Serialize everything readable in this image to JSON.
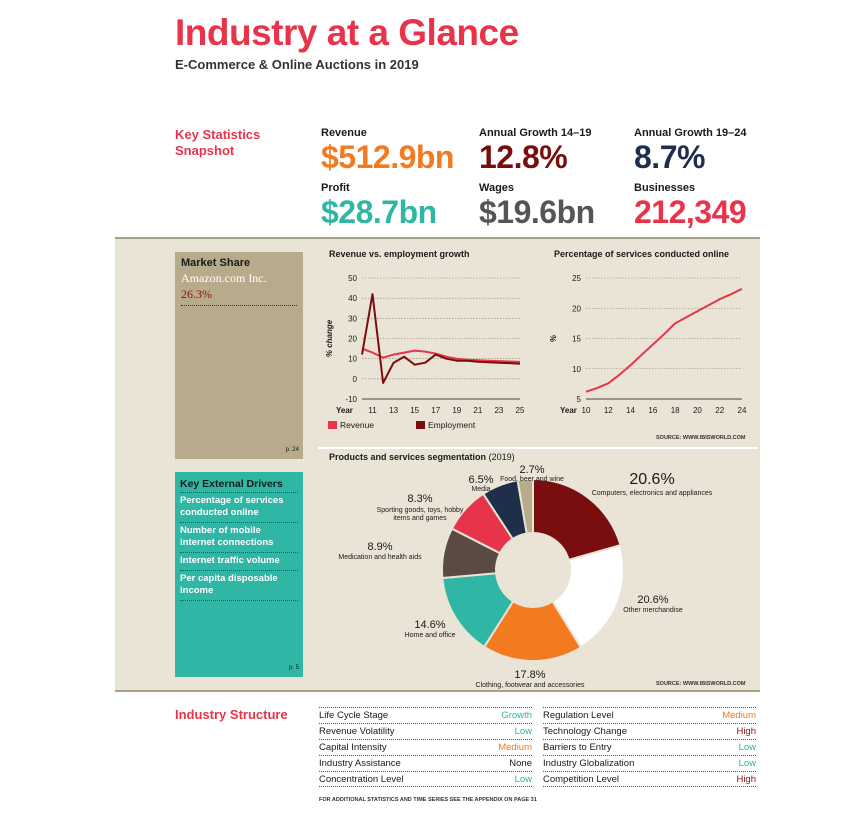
{
  "header": {
    "title": "Industry at a Glance",
    "subtitle": "E-Commerce & Online Auctions in 2019"
  },
  "key_statistics": {
    "label": "Key Statistics Snapshot",
    "revenue": {
      "label": "Revenue",
      "value": "$512.9bn"
    },
    "growth_14_19": {
      "label": "Annual Growth 14–19",
      "value": "12.8%"
    },
    "growth_19_24": {
      "label": "Annual Growth 19–24",
      "value": "8.7%"
    },
    "profit": {
      "label": "Profit",
      "value": "$28.7bn"
    },
    "wages": {
      "label": "Wages",
      "value": "$19.6bn"
    },
    "businesses": {
      "label": "Businesses",
      "value": "212,349"
    }
  },
  "market_share": {
    "title": "Market Share",
    "company": "Amazon.com Inc.",
    "share": "26.3%",
    "page_ref": "p. 24"
  },
  "external_drivers": {
    "title": "Key External Drivers",
    "items": [
      "Percentage of services conducted online",
      "Number of mobile internet connections",
      "Internet traffic volume",
      "Per capita disposable income"
    ],
    "page_ref": "p. 5"
  },
  "colors": {
    "accent_red": "#e8344a",
    "orange": "#f47a20",
    "dark_red": "#7a0d0d",
    "navy": "#1f2f4a",
    "teal": "#2fb6a5",
    "grey": "#555555",
    "brown": "#5a4a42",
    "beige": "#b7ab8c",
    "low_green": "#2fb6a5",
    "medium_orange": "#f47a20",
    "high_red": "#8b1010"
  },
  "chart_data": [
    {
      "type": "line",
      "title": "Revenue vs. employment growth",
      "ylabel": "% change",
      "x_axis_label": "Year",
      "x_ticks": [
        "11",
        "13",
        "15",
        "17",
        "19",
        "21",
        "23",
        "25"
      ],
      "y_ticks": [
        "50",
        "40",
        "30",
        "20",
        "10",
        "0",
        "-10"
      ],
      "ylim": [
        -10,
        50
      ],
      "xlim": [
        10,
        25
      ],
      "series": [
        {
          "name": "Revenue",
          "color": "#e8344a",
          "x": [
            10,
            11,
            12,
            13,
            14,
            15,
            16,
            17,
            18,
            19,
            20,
            21,
            22,
            23,
            24,
            25
          ],
          "y": [
            15,
            13,
            10.5,
            12,
            13,
            14,
            13.5,
            12.5,
            11,
            10,
            9.5,
            9.2,
            9,
            8.8,
            8.6,
            8.4
          ]
        },
        {
          "name": "Employment",
          "color": "#7a0d0d",
          "x": [
            10,
            11,
            12,
            13,
            14,
            15,
            16,
            17,
            18,
            19,
            20,
            21,
            22,
            23,
            24,
            25
          ],
          "y": [
            12,
            42,
            -2,
            8,
            11,
            7,
            8,
            12,
            10,
            9,
            9,
            8.5,
            8.2,
            8,
            7.8,
            7.5
          ]
        }
      ]
    },
    {
      "type": "line",
      "title": "Percentage of services conducted online",
      "ylabel": "%",
      "x_axis_label": "Year",
      "x_ticks": [
        "10",
        "12",
        "14",
        "16",
        "18",
        "20",
        "22",
        "24"
      ],
      "y_ticks": [
        "25",
        "20",
        "15",
        "10",
        "5"
      ],
      "ylim": [
        5,
        25
      ],
      "xlim": [
        10,
        24
      ],
      "series": [
        {
          "name": "Percentage",
          "color": "#e8344a",
          "x": [
            10,
            11,
            12,
            13,
            14,
            15,
            16,
            17,
            18,
            19,
            20,
            21,
            22,
            23,
            24
          ],
          "y": [
            6.2,
            6.8,
            7.6,
            9.0,
            10.6,
            12.3,
            14.0,
            15.7,
            17.5,
            18.5,
            19.5,
            20.5,
            21.5,
            22.3,
            23.2
          ]
        }
      ],
      "source": "SOURCE: WWW.IBISWORLD.COM"
    },
    {
      "type": "pie",
      "title": "Products and services segmentation",
      "title_suffix": "(2019)",
      "slices": [
        {
          "pct": 20.6,
          "value": "20.6%",
          "label": "Computers, electronics and appliances",
          "color": "#7a0d0d"
        },
        {
          "pct": 20.6,
          "value": "20.6%",
          "label": "Other merchandise",
          "color": "#ffffff"
        },
        {
          "pct": 17.8,
          "value": "17.8%",
          "label": "Clothing, footwear and accessories",
          "color": "#f47a20"
        },
        {
          "pct": 14.6,
          "value": "14.6%",
          "label": "Home and office",
          "color": "#2fb6a5"
        },
        {
          "pct": 8.9,
          "value": "8.9%",
          "label": "Medication and health aids",
          "color": "#5a4a42"
        },
        {
          "pct": 8.3,
          "value": "8.3%",
          "label": "Sporting goods, toys, hobby items and games",
          "color": "#e8344a"
        },
        {
          "pct": 6.5,
          "value": "6.5%",
          "label": "Media",
          "color": "#1f2f4a"
        },
        {
          "pct": 2.7,
          "value": "2.7%",
          "label": "Food, beer and wine",
          "color": "#b7ab8c"
        }
      ],
      "source": "SOURCE: WWW.IBISWORLD.COM"
    }
  ],
  "industry_structure": {
    "label": "Industry Structure",
    "left": [
      {
        "name": "Life Cycle Stage",
        "value": "Growth",
        "level": "green"
      },
      {
        "name": "Revenue Volatility",
        "value": "Low",
        "level": "green"
      },
      {
        "name": "Capital Intensity",
        "value": "Medium",
        "level": "orange"
      },
      {
        "name": "Industry Assistance",
        "value": "None",
        "level": "black"
      },
      {
        "name": "Concentration Level",
        "value": "Low",
        "level": "green"
      }
    ],
    "right": [
      {
        "name": "Regulation Level",
        "value": "Medium",
        "level": "orange"
      },
      {
        "name": "Technology Change",
        "value": "High",
        "level": "red"
      },
      {
        "name": "Barriers to Entry",
        "value": "Low",
        "level": "green"
      },
      {
        "name": "Industry Globalization",
        "value": "Low",
        "level": "green"
      },
      {
        "name": "Competition Level",
        "value": "High",
        "level": "red"
      }
    ],
    "footnote": "FOR ADDITIONAL STATISTICS AND TIME SERIES SEE THE APPENDIX ON PAGE 31"
  }
}
